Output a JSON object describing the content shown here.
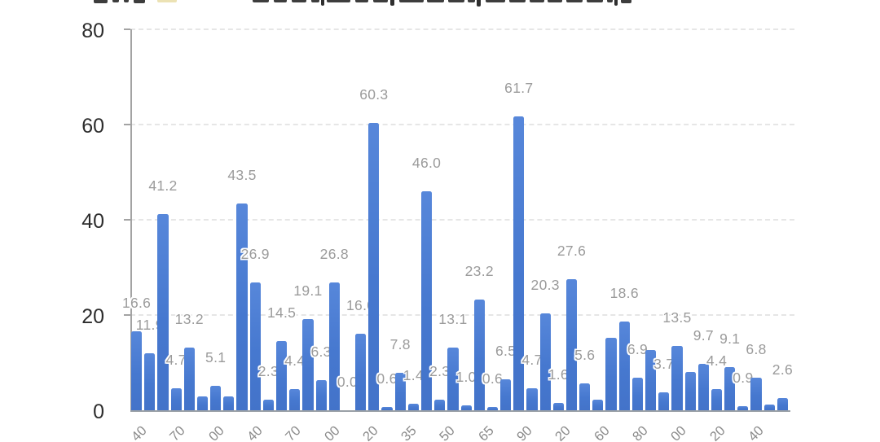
{
  "figure": {
    "background": "#ffffff",
    "header_clipped": true,
    "title_visible": false
  },
  "chart_data": {
    "type": "bar",
    "title_visible": false,
    "xlabel": "",
    "ylabel": "",
    "ylim": [
      0,
      80
    ],
    "yticks": [
      0,
      20,
      40,
      60,
      80
    ],
    "grid": "horizontal-dashed",
    "legend_position": "clipped-top",
    "values": [
      16.6,
      11.9,
      41.2,
      4.7,
      13.2,
      2.9,
      5.1,
      2.9,
      43.5,
      26.9,
      2.3,
      14.5,
      4.4,
      19.1,
      6.3,
      26.8,
      0.0,
      16.0,
      60.3,
      0.6,
      7.8,
      1.4,
      46.0,
      2.3,
      13.1,
      1.0,
      23.2,
      0.6,
      6.5,
      61.7,
      4.7,
      20.3,
      1.6,
      27.6,
      5.6,
      2.3,
      15.2,
      18.6,
      6.9,
      12.6,
      3.7,
      13.5,
      8.0,
      9.7,
      4.4,
      9.1,
      0.9,
      6.8,
      1.2,
      2.6
    ],
    "bar_labels": [
      "16.6",
      "11.9",
      "41.2",
      "4.7",
      "13.2",
      null,
      "5.1",
      null,
      "43.5",
      "26.9",
      "2.3",
      "14.5",
      "4.4",
      "19.1",
      "6.3",
      "26.8",
      "0.0",
      "16.0",
      "60.3",
      "0.6",
      "7.8",
      "1.4",
      "46.0",
      "2.3",
      "13.1",
      "1.0",
      "23.2",
      "0.6",
      "6.5",
      "61.7",
      "4.7",
      "20.3",
      "1.6",
      "27.6",
      "5.6",
      null,
      null,
      "18.6",
      "6.9",
      null,
      "3.7",
      "13.5",
      null,
      "9.7",
      "4.4",
      "9.1",
      "0.9",
      "6.8",
      null,
      "2.6"
    ],
    "xticks_clipped": true,
    "xtick_visible_fragments": [
      "40",
      "70",
      "00",
      "40",
      "70",
      "00",
      "20",
      "35",
      "50",
      "65",
      "90",
      "20",
      "60",
      "80",
      "00",
      "20",
      "40"
    ],
    "colors": {
      "bar": "#4d7fd3",
      "bar_label": "#9b9b9b",
      "axis": "#a3a3a3",
      "grid": "#e6e6e6",
      "ytick_label": "#2d2d2d",
      "xtick_label": "#8a8a8a",
      "header_swatch_fragment": "#ece2b4"
    }
  }
}
